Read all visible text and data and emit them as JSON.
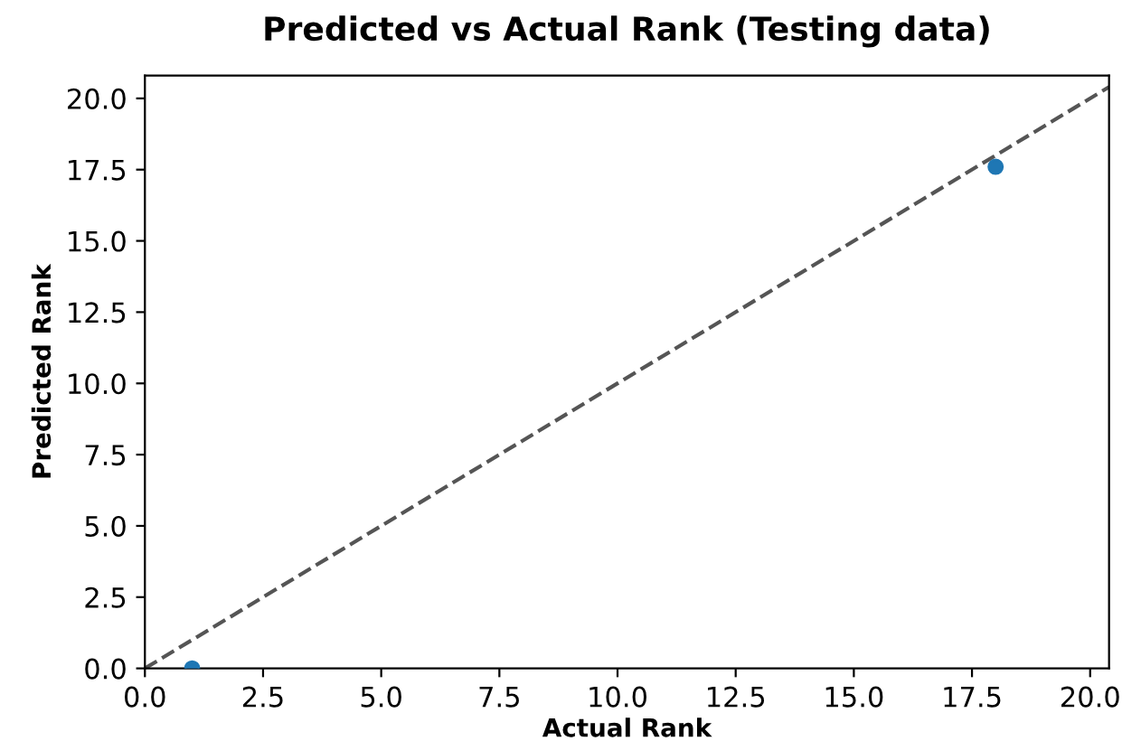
{
  "chart_data": {
    "type": "scatter",
    "title": "Predicted vs Actual Rank (Testing data)",
    "xlabel": "Actual Rank",
    "ylabel": "Predicted Rank",
    "series": [
      {
        "color": "#1f77b4",
        "x": [
          1,
          18
        ],
        "values": [
          0.0,
          17.6
        ],
        "marker": "circle"
      },
      {
        "type": "line",
        "color": "#555555",
        "x": [
          0,
          20.4
        ],
        "values": [
          0,
          20.4
        ],
        "line_style": "dashed",
        "marker": "none"
      }
    ],
    "xlim": [
      0,
      20.4
    ],
    "ylim": [
      0,
      20.8
    ],
    "xticks": [
      {
        "value": 0,
        "label": "0.0"
      },
      {
        "value": 2.5,
        "label": "2.5"
      },
      {
        "value": 5,
        "label": "5.0"
      },
      {
        "value": 7.5,
        "label": "7.5"
      },
      {
        "value": 10,
        "label": "10.0"
      },
      {
        "value": 12.5,
        "label": "12.5"
      },
      {
        "value": 15,
        "label": "15.0"
      },
      {
        "value": 17.5,
        "label": "17.5"
      },
      {
        "value": 20,
        "label": "20.0"
      }
    ],
    "yticks": [
      {
        "value": 0,
        "label": "0.0"
      },
      {
        "value": 2.5,
        "label": "2.5"
      },
      {
        "value": 5,
        "label": "5.0"
      },
      {
        "value": 7.5,
        "label": "7.5"
      },
      {
        "value": 10,
        "label": "10.0"
      },
      {
        "value": 12.5,
        "label": "12.5"
      },
      {
        "value": 15,
        "label": "15.0"
      },
      {
        "value": 17.5,
        "label": "17.5"
      },
      {
        "value": 20,
        "label": "20.0"
      }
    ],
    "grid": false,
    "legend": false
  }
}
